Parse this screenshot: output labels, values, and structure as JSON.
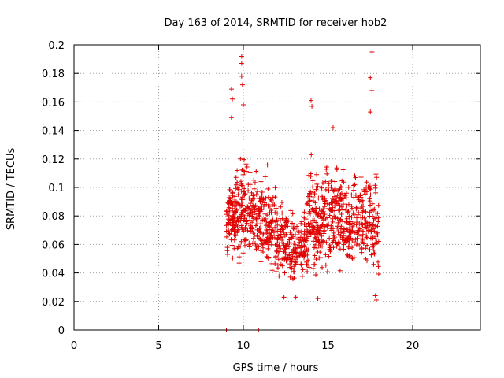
{
  "chart_data": {
    "type": "scatter",
    "title": "Day 163 of 2014, SRMTID for receiver hob2",
    "xlabel": "GPS time / hours",
    "ylabel": "SRMTID / TECUs",
    "xlim": [
      0,
      24
    ],
    "ylim": [
      0,
      0.2
    ],
    "grid": true,
    "x_ticks": [
      "0",
      "5",
      "10",
      "15",
      "20"
    ],
    "x_tick_values": [
      0,
      5,
      10,
      15,
      20
    ],
    "y_ticks": [
      "0",
      "0.02",
      "0.04",
      "0.06",
      "0.08",
      "0.1",
      "0.12",
      "0.14",
      "0.16",
      "0.18",
      "0.2"
    ],
    "y_tick_values": [
      0,
      0.02,
      0.04,
      0.06,
      0.08,
      0.1,
      0.12,
      0.14,
      0.16,
      0.18,
      0.2
    ],
    "marker": "+",
    "color": "#e00000",
    "series": [
      {
        "name": "SRMTID",
        "x_range": [
          9.0,
          18.0
        ],
        "point_count": 1100,
        "notable_points": [
          {
            "x": 9.0,
            "y": 0.0
          },
          {
            "x": 10.9,
            "y": 0.0
          },
          {
            "x": 9.9,
            "y": 0.192
          },
          {
            "x": 9.9,
            "y": 0.187
          },
          {
            "x": 9.9,
            "y": 0.178
          },
          {
            "x": 9.95,
            "y": 0.172
          },
          {
            "x": 9.3,
            "y": 0.169
          },
          {
            "x": 9.35,
            "y": 0.162
          },
          {
            "x": 9.3,
            "y": 0.149
          },
          {
            "x": 10.0,
            "y": 0.158
          },
          {
            "x": 17.6,
            "y": 0.195
          },
          {
            "x": 17.5,
            "y": 0.177
          },
          {
            "x": 17.6,
            "y": 0.168
          },
          {
            "x": 17.5,
            "y": 0.153
          },
          {
            "x": 14.0,
            "y": 0.161
          },
          {
            "x": 14.05,
            "y": 0.157
          },
          {
            "x": 15.3,
            "y": 0.142
          },
          {
            "x": 17.8,
            "y": 0.024
          },
          {
            "x": 17.85,
            "y": 0.021
          },
          {
            "x": 12.4,
            "y": 0.023
          },
          {
            "x": 13.1,
            "y": 0.023
          },
          {
            "x": 14.4,
            "y": 0.022
          }
        ],
        "envelope": [
          {
            "x": 9.0,
            "y_min": 0.045,
            "y_max": 0.105
          },
          {
            "x": 9.5,
            "y_min": 0.04,
            "y_max": 0.12
          },
          {
            "x": 10.0,
            "y_min": 0.04,
            "y_max": 0.135
          },
          {
            "x": 10.5,
            "y_min": 0.038,
            "y_max": 0.125
          },
          {
            "x": 11.0,
            "y_min": 0.036,
            "y_max": 0.11
          },
          {
            "x": 11.5,
            "y_min": 0.034,
            "y_max": 0.12
          },
          {
            "x": 12.0,
            "y_min": 0.03,
            "y_max": 0.105
          },
          {
            "x": 12.5,
            "y_min": 0.028,
            "y_max": 0.095
          },
          {
            "x": 13.0,
            "y_min": 0.026,
            "y_max": 0.09
          },
          {
            "x": 13.5,
            "y_min": 0.026,
            "y_max": 0.085
          },
          {
            "x": 14.0,
            "y_min": 0.026,
            "y_max": 0.14
          },
          {
            "x": 14.5,
            "y_min": 0.03,
            "y_max": 0.115
          },
          {
            "x": 15.0,
            "y_min": 0.03,
            "y_max": 0.13
          },
          {
            "x": 15.5,
            "y_min": 0.032,
            "y_max": 0.125
          },
          {
            "x": 16.0,
            "y_min": 0.032,
            "y_max": 0.12
          },
          {
            "x": 16.5,
            "y_min": 0.034,
            "y_max": 0.115
          },
          {
            "x": 17.0,
            "y_min": 0.035,
            "y_max": 0.12
          },
          {
            "x": 17.5,
            "y_min": 0.03,
            "y_max": 0.135
          },
          {
            "x": 18.0,
            "y_min": 0.025,
            "y_max": 0.12
          }
        ]
      }
    ]
  }
}
